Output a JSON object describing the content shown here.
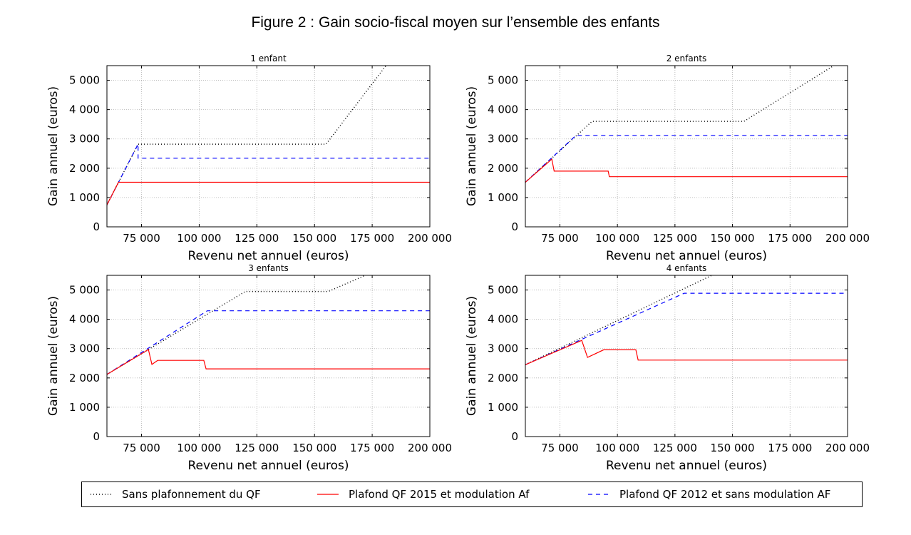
{
  "title": "Figure 2 : Gain socio-fiscal moyen sur l’ensemble des enfants",
  "legend": [
    {
      "label": "Sans plafonnement du QF",
      "color": "#000000",
      "dash": "1,3"
    },
    {
      "label": "Plafond QF 2015 et modulation Af",
      "color": "#ff0000",
      "dash": ""
    },
    {
      "label": "Plafond QF 2012 et sans modulation AF",
      "color": "#0000ff",
      "dash": "6,5"
    }
  ],
  "chart_data": [
    {
      "type": "line",
      "title": "1 enfant",
      "xlabel": "Revenu net annuel (euros)",
      "ylabel": "Gain annuel (euros)",
      "xlim": [
        60000,
        200000
      ],
      "ylim": [
        0,
        5500
      ],
      "xticks": [
        75000,
        100000,
        125000,
        150000,
        175000,
        200000
      ],
      "xtick_labels": [
        "75 000",
        "100 000",
        "125 000",
        "150 000",
        "175 000",
        "200 000"
      ],
      "yticks": [
        0,
        1000,
        2000,
        3000,
        4000,
        5000
      ],
      "ytick_labels": [
        "0",
        "1 000",
        "2 000",
        "3 000",
        "4 000",
        "5 000"
      ],
      "grid": true,
      "series": [
        {
          "name": "Sans plafonnement du QF",
          "x": [
            60000,
            73500,
            155000,
            181000
          ],
          "y": [
            750,
            2820,
            2820,
            5500
          ]
        },
        {
          "name": "Plafond QF 2012 et sans modulation AF",
          "x": [
            60000,
            73500,
            73500,
            200000
          ],
          "y": [
            750,
            2820,
            2340,
            2340
          ]
        },
        {
          "name": "Plafond QF 2015 et modulation Af",
          "x": [
            60000,
            65000,
            200000
          ],
          "y": [
            750,
            1520,
            1520
          ]
        }
      ]
    },
    {
      "type": "line",
      "title": "2 enfants",
      "xlabel": "Revenu net annuel (euros)",
      "ylabel": "Gain annuel (euros)",
      "xlim": [
        60000,
        200000
      ],
      "ylim": [
        0,
        5500
      ],
      "xticks": [
        75000,
        100000,
        125000,
        150000,
        175000,
        200000
      ],
      "xtick_labels": [
        "75 000",
        "100 000",
        "125 000",
        "150 000",
        "175 000",
        "200 000"
      ],
      "yticks": [
        0,
        1000,
        2000,
        3000,
        4000,
        5000
      ],
      "ytick_labels": [
        "0",
        "1 000",
        "2 000",
        "3 000",
        "4 000",
        "5 000"
      ],
      "grid": true,
      "series": [
        {
          "name": "Sans plafonnement du QF",
          "x": [
            60000,
            89000,
            155000,
            194000
          ],
          "y": [
            1520,
            3600,
            3600,
            5500
          ]
        },
        {
          "name": "Plafond QF 2012 et sans modulation AF",
          "x": [
            60000,
            82000,
            200000
          ],
          "y": [
            1520,
            3120,
            3120
          ]
        },
        {
          "name": "Plafond QF 2015 et modulation Af",
          "x": [
            60000,
            71500,
            72500,
            96000,
            96500,
            200000
          ],
          "y": [
            1520,
            2310,
            1900,
            1900,
            1710,
            1710
          ]
        }
      ]
    },
    {
      "type": "line",
      "title": "3 enfants",
      "xlabel": "Revenu net annuel (euros)",
      "ylabel": "Gain annuel (euros)",
      "xlim": [
        60000,
        200000
      ],
      "ylim": [
        0,
        5500
      ],
      "xticks": [
        75000,
        100000,
        125000,
        150000,
        175000,
        200000
      ],
      "xtick_labels": [
        "75 000",
        "100 000",
        "125 000",
        "150 000",
        "175 000",
        "200 000"
      ],
      "yticks": [
        0,
        1000,
        2000,
        3000,
        4000,
        5000
      ],
      "ytick_labels": [
        "0",
        "1 000",
        "2 000",
        "3 000",
        "4 000",
        "5 000"
      ],
      "grid": true,
      "series": [
        {
          "name": "Sans plafonnement du QF",
          "x": [
            60000,
            120000,
            156000,
            172000
          ],
          "y": [
            2120,
            4950,
            4950,
            5500
          ]
        },
        {
          "name": "Plafond QF 2012 et sans modulation AF",
          "x": [
            60000,
            103500,
            200000
          ],
          "y": [
            2120,
            4290,
            4290
          ]
        },
        {
          "name": "Plafond QF 2015 et modulation Af",
          "x": [
            60000,
            78000,
            79500,
            82000,
            102000,
            103000,
            200000
          ],
          "y": [
            2120,
            2970,
            2460,
            2600,
            2600,
            2310,
            2310
          ]
        }
      ]
    },
    {
      "type": "line",
      "title": "4 enfants",
      "xlabel": "Revenu net annuel (euros)",
      "ylabel": "Gain annuel (euros)",
      "xlim": [
        60000,
        200000
      ],
      "ylim": [
        0,
        5500
      ],
      "xticks": [
        75000,
        100000,
        125000,
        150000,
        175000,
        200000
      ],
      "xtick_labels": [
        "75 000",
        "100 000",
        "125 000",
        "150 000",
        "175 000",
        "200 000"
      ],
      "yticks": [
        0,
        1000,
        2000,
        3000,
        4000,
        5000
      ],
      "ytick_labels": [
        "0",
        "1 000",
        "2 000",
        "3 000",
        "4 000",
        "5 000"
      ],
      "grid": true,
      "series": [
        {
          "name": "Sans plafonnement du QF",
          "x": [
            60000,
            141000
          ],
          "y": [
            2450,
            5500
          ]
        },
        {
          "name": "Plafond QF 2012 et sans modulation AF",
          "x": [
            60000,
            129000,
            200000
          ],
          "y": [
            2450,
            4890,
            4890
          ]
        },
        {
          "name": "Plafond QF 2015 et modulation Af",
          "x": [
            60000,
            84500,
            87000,
            94000,
            108000,
            109000,
            200000
          ],
          "y": [
            2450,
            3280,
            2700,
            2960,
            2960,
            2610,
            2610
          ]
        }
      ]
    }
  ]
}
